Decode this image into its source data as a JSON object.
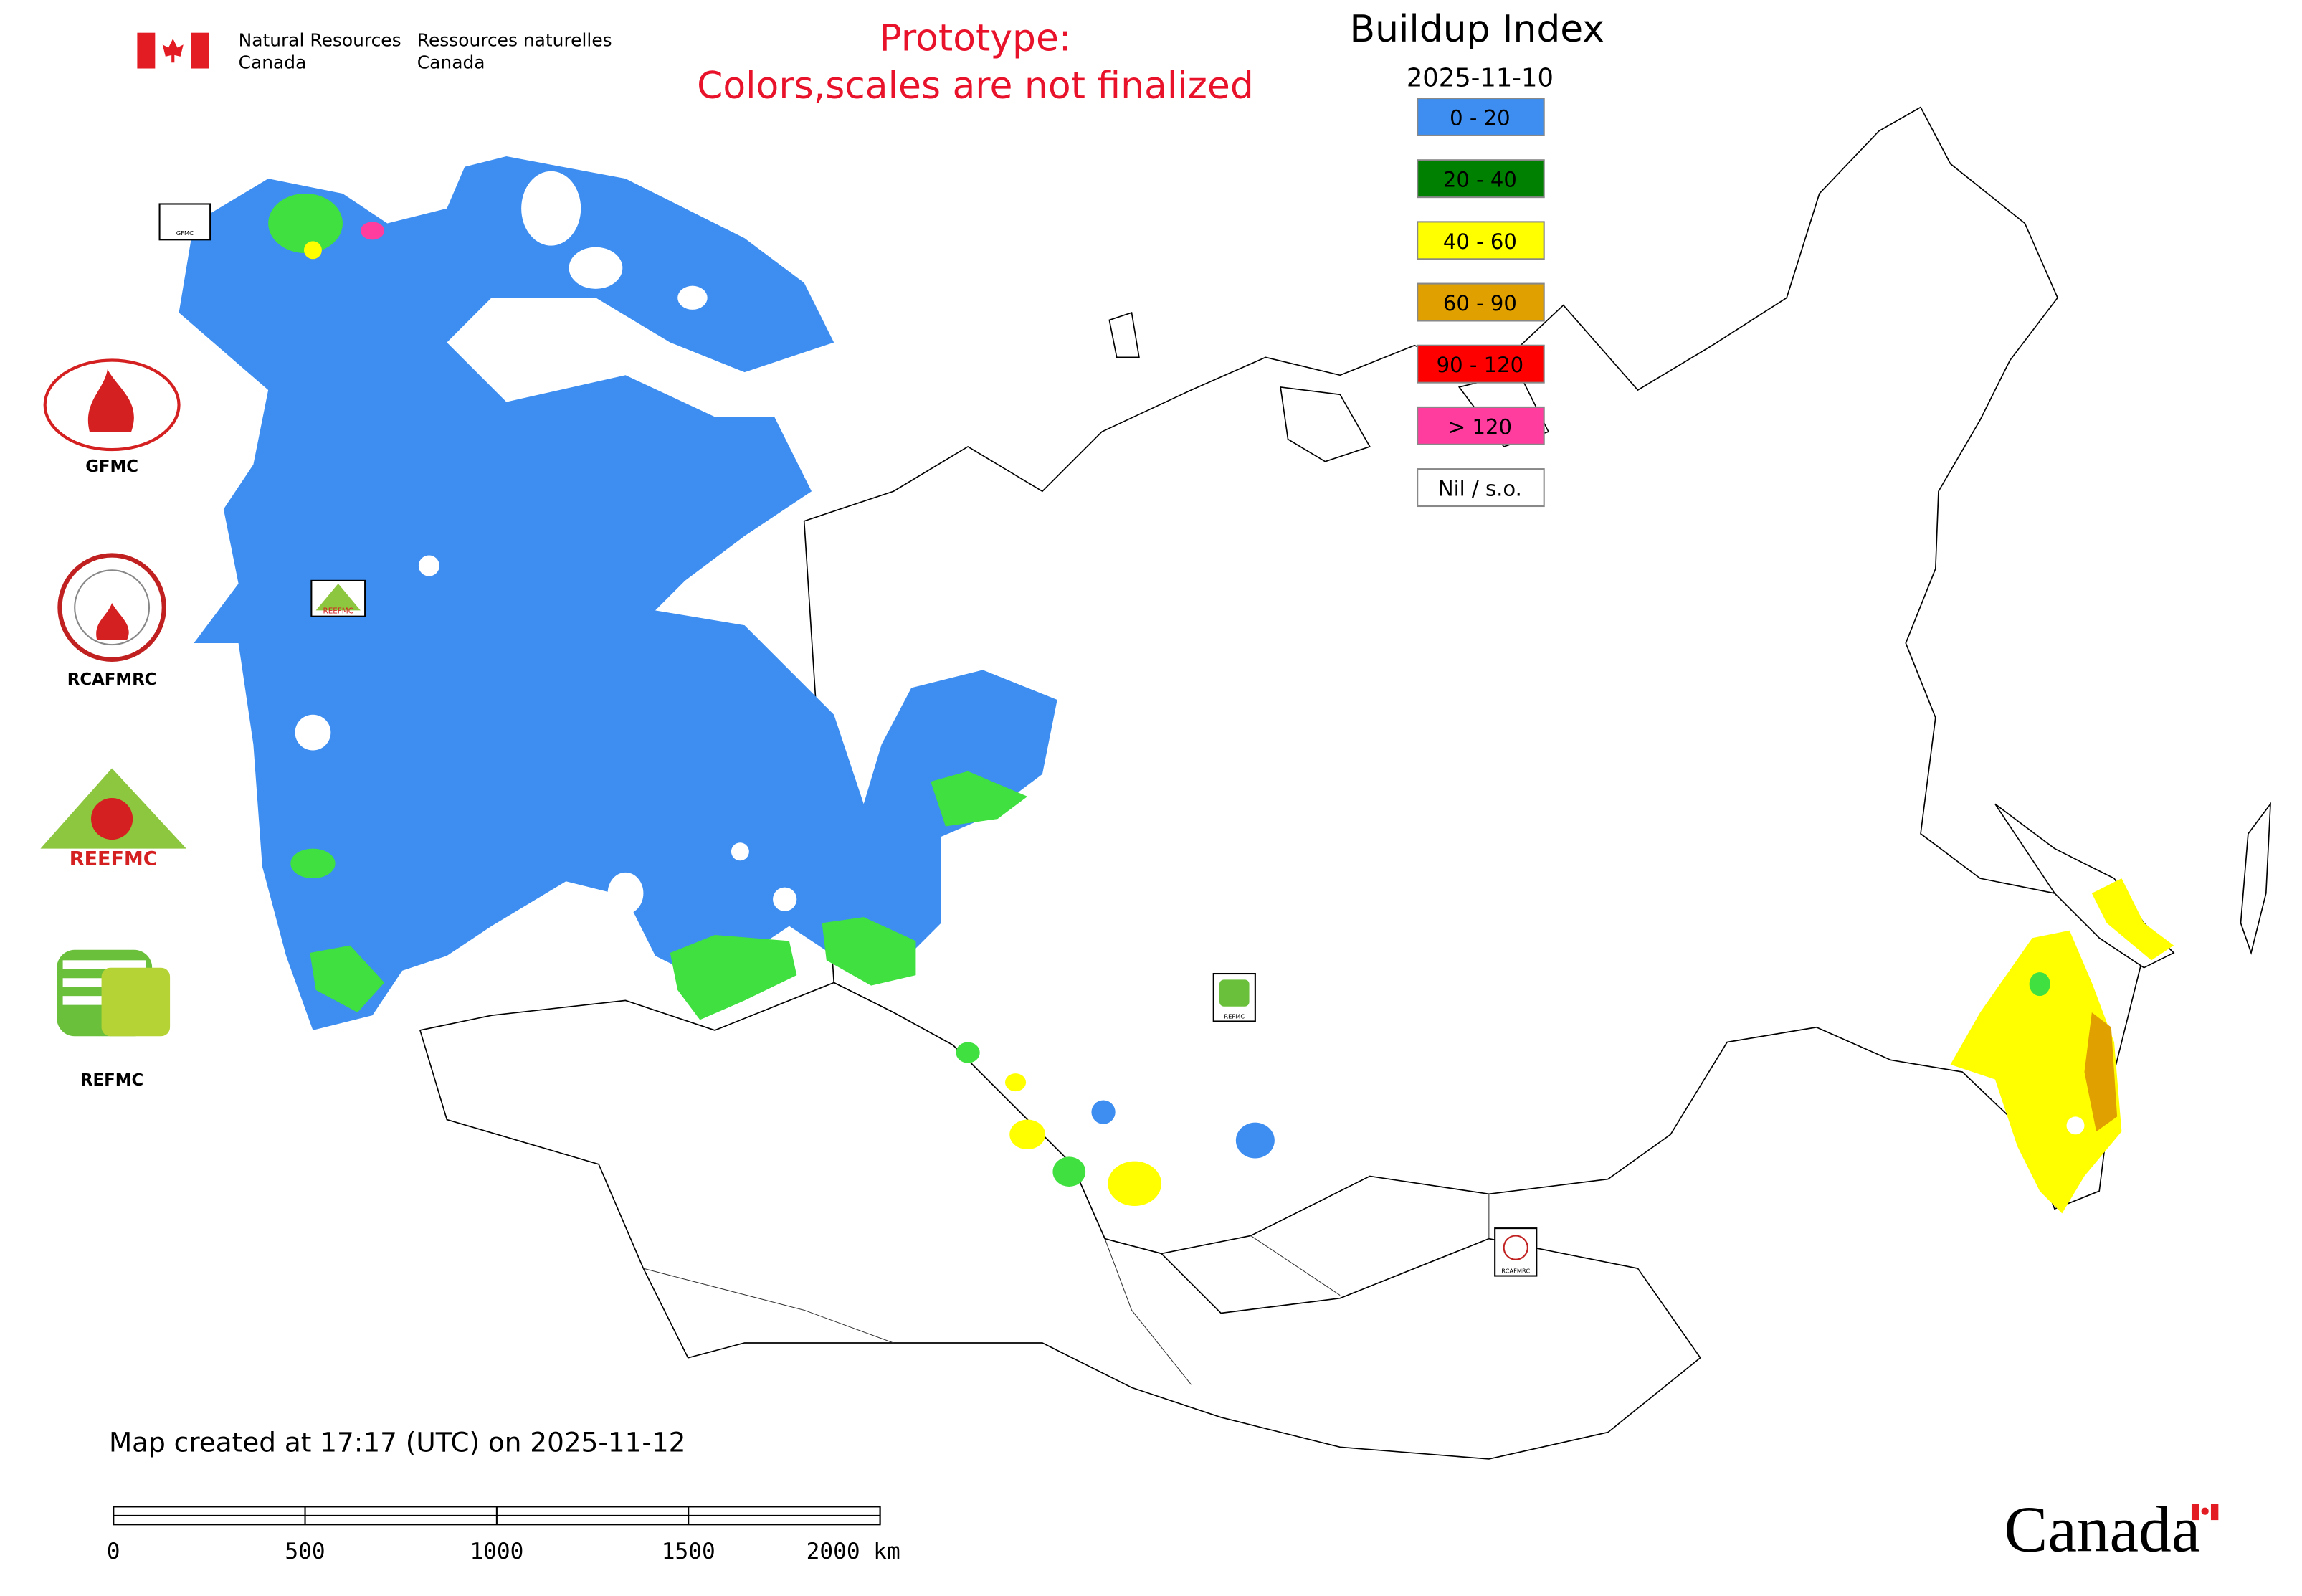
{
  "header": {
    "department_en": [
      "Natural Resources",
      "Canada"
    ],
    "department_fr": [
      "Ressources naturelles",
      "Canada"
    ],
    "notice": [
      "Prototype:",
      "Colors,scales are not finalized"
    ]
  },
  "map": {
    "title": "Buildup Index",
    "date": "2025-11-10",
    "legend": [
      {
        "label": "0 - 20",
        "color": "#3d8ef0"
      },
      {
        "label": "20 - 40",
        "color": "#008000"
      },
      {
        "label": "40 - 60",
        "color": "#ffff00"
      },
      {
        "label": "60 - 90",
        "color": "#e0a000"
      },
      {
        "label": "90 - 120",
        "color": "#ff0000"
      },
      {
        "label": "> 120",
        "color": "#ff3d9e"
      },
      {
        "label": "Nil / s.o.",
        "color": "#ffffff"
      }
    ],
    "created": "Map created at 17:17 (UTC) on 2025-11-12",
    "scale_bar": {
      "ticks": [
        0,
        500,
        1000,
        1500,
        {
          "value": 2000,
          "label": "2000 km"
        }
      ]
    }
  },
  "logos": [
    "GFMC",
    "RCAFMRC",
    "REEFMC",
    "REFMC"
  ],
  "wordmark": "Canada"
}
